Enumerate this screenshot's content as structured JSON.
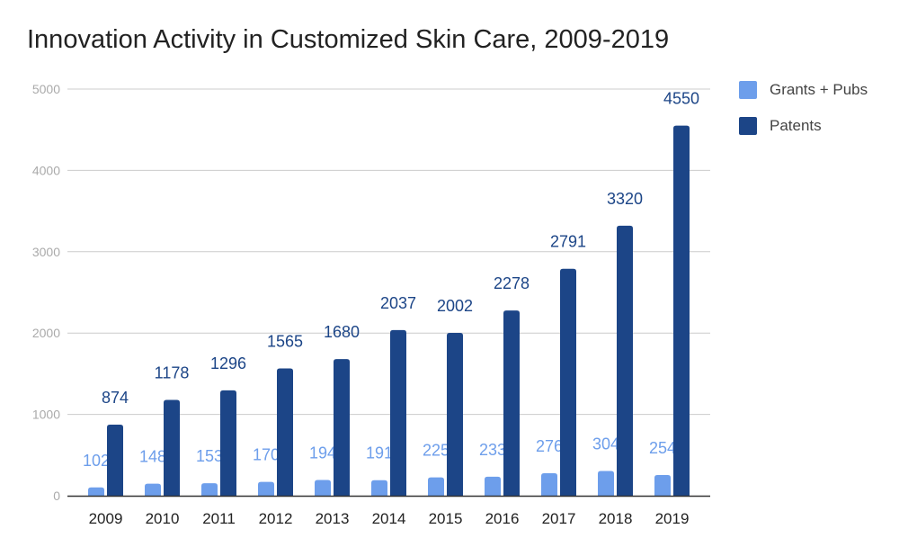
{
  "chart_data": {
    "type": "bar",
    "title": "Innovation Activity in Customized Skin Care, 2009-2019",
    "xlabel": "",
    "ylabel": "",
    "categories": [
      "2009",
      "2010",
      "2011",
      "2012",
      "2013",
      "2014",
      "2015",
      "2016",
      "2017",
      "2018",
      "2019"
    ],
    "series": [
      {
        "name": "Grants + Pubs",
        "color": "#6d9eeb",
        "values": [
          102,
          148,
          153,
          170,
          194,
          191,
          225,
          233,
          276,
          304,
          254
        ]
      },
      {
        "name": "Patents",
        "color": "#1c4587",
        "values": [
          874,
          1178,
          1296,
          1565,
          1680,
          2037,
          2002,
          2278,
          2791,
          3320,
          4550
        ]
      }
    ],
    "ylim": [
      0,
      5000
    ],
    "yticks": [
      0,
      1000,
      2000,
      3000,
      4000,
      5000
    ],
    "grid": true,
    "data_labels": true,
    "legend_position": "right"
  }
}
